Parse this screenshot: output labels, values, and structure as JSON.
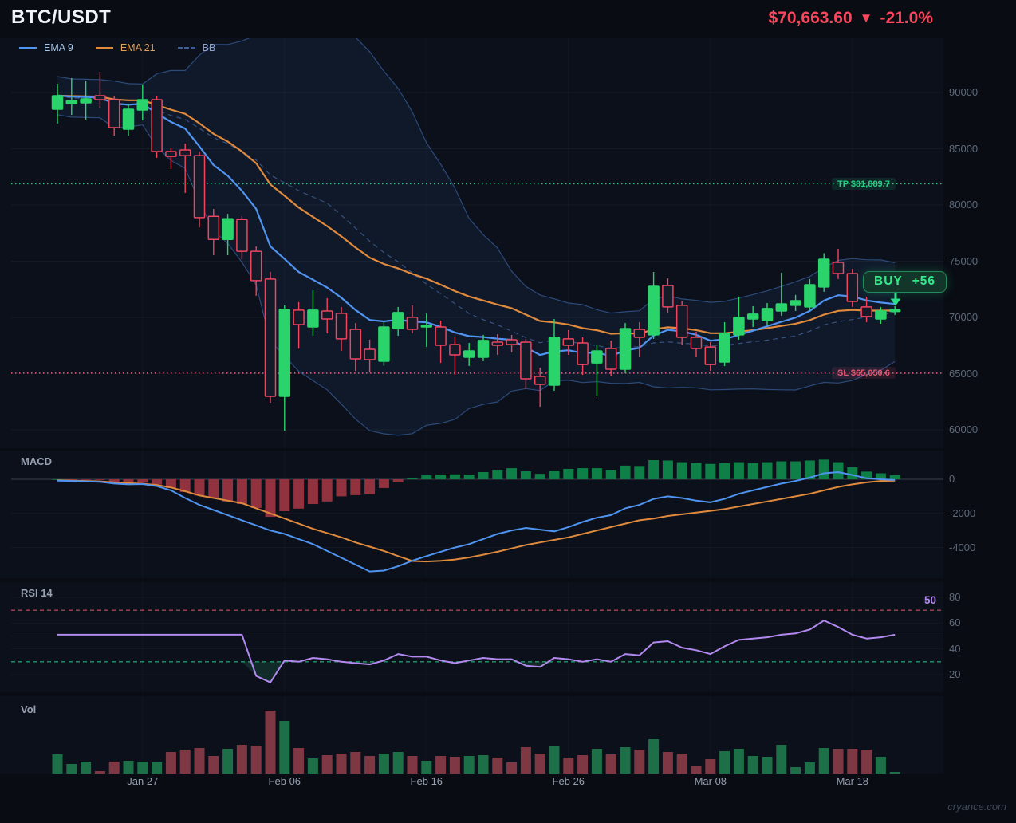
{
  "header": {
    "symbol": "BTC/USDT",
    "price": "$70,663.60",
    "direction": "▼",
    "change": "-21.0%"
  },
  "legend": [
    {
      "label": "EMA 9",
      "color": "#4f94f0",
      "text_color": "#aac6e8",
      "style": "line"
    },
    {
      "label": "EMA 21",
      "color": "#e08a3e",
      "text_color": "#e0a35c",
      "style": "line"
    },
    {
      "label": "BB",
      "color": "#3d5e94",
      "text_color": "#8fa5cf",
      "style": "dashed"
    }
  ],
  "panel_titles": {
    "macd": "MACD",
    "rsi": "RSI 14",
    "vol": "Vol"
  },
  "watermark": "cryance.com",
  "colors": {
    "page_bg": "#090c13",
    "panel_bg": "#0c101a",
    "up": "#2bd46a",
    "down": "#f0445f",
    "down_body": "#141a28",
    "ema9": "#4f94f0",
    "ema21": "#e08a3e",
    "bb_line": "#2b4a7a",
    "bb_mid": "#44669c",
    "bb_fill": "rgba(58,110,190,0.10)",
    "hist_pos": "#0e7f46",
    "hist_neg": "#93323f",
    "macd_line": "#4f94f0",
    "signal_line": "#e08a3e",
    "rsi_line": "#b289ee",
    "rsi_ob": "#a5455a",
    "rsi_os": "#23996b",
    "rsi_fill": "rgba(35,153,107,0.20)",
    "vol_up": "#1d6f47",
    "vol_down": "#7e3844",
    "tp": "#27cf84",
    "sl": "#e05672",
    "buy": "#2ee08a",
    "price_text": "#f8465c",
    "grid": "rgba(255,255,255,0.045)",
    "vgrid": "rgba(255,255,255,0.03)",
    "zero_line": "#39404e"
  },
  "chart_data": {
    "type": "candlestick",
    "title": "BTC/USDT",
    "price_ticks": [
      90000,
      85000,
      80000,
      75000,
      70000,
      65000,
      60000
    ],
    "date_ticks": [
      {
        "label": "Jan 27",
        "index": 6
      },
      {
        "label": "Feb 06",
        "index": 16
      },
      {
        "label": "Feb 16",
        "index": 26
      },
      {
        "label": "Feb 26",
        "index": 36
      },
      {
        "label": "Mar 08",
        "index": 46
      },
      {
        "label": "Mar 18",
        "index": 56
      }
    ],
    "candles": [
      [
        88510,
        90780,
        87230,
        89720
      ],
      [
        89000,
        91280,
        88010,
        89290
      ],
      [
        89080,
        91060,
        87590,
        89430
      ],
      [
        89720,
        91840,
        88650,
        89360
      ],
      [
        89360,
        89720,
        86170,
        86880
      ],
      [
        86740,
        89000,
        86170,
        88510
      ],
      [
        88440,
        90700,
        87520,
        89360
      ],
      [
        89360,
        89720,
        84180,
        84750
      ],
      [
        84750,
        85100,
        83190,
        84320
      ],
      [
        84890,
        85460,
        81070,
        84390
      ],
      [
        84390,
        84750,
        78000,
        78870
      ],
      [
        78990,
        79640,
        75530,
        76930
      ],
      [
        76930,
        79210,
        75530,
        78780
      ],
      [
        78710,
        79000,
        75170,
        75880
      ],
      [
        75880,
        76310,
        71920,
        73270
      ],
      [
        73410,
        74050,
        62410,
        62980
      ],
      [
        62980,
        71070,
        59930,
        70720
      ],
      [
        70650,
        71350,
        67230,
        69360
      ],
      [
        69150,
        72410,
        68370,
        70650
      ],
      [
        70570,
        71710,
        68580,
        69860
      ],
      [
        70360,
        70930,
        67020,
        68090
      ],
      [
        68940,
        69500,
        65240,
        66310
      ],
      [
        67160,
        68020,
        65100,
        66240
      ],
      [
        66100,
        69600,
        65700,
        69150
      ],
      [
        69010,
        70930,
        68370,
        70430
      ],
      [
        70010,
        71070,
        68580,
        68940
      ],
      [
        69150,
        70360,
        67370,
        69290
      ],
      [
        69150,
        69720,
        65950,
        67520
      ],
      [
        67590,
        68230,
        64890,
        66670
      ],
      [
        66450,
        67730,
        65680,
        67020
      ],
      [
        66450,
        68450,
        66100,
        67950
      ],
      [
        67800,
        68510,
        66670,
        67520
      ],
      [
        68010,
        68440,
        66880,
        67590
      ],
      [
        67800,
        68090,
        63620,
        64540
      ],
      [
        64750,
        65530,
        62060,
        64040
      ],
      [
        63970,
        69860,
        63480,
        68230
      ],
      [
        68090,
        68870,
        66670,
        67520
      ],
      [
        67730,
        68230,
        64890,
        65810
      ],
      [
        65950,
        67590,
        62980,
        67020
      ],
      [
        67230,
        67940,
        64750,
        65390
      ],
      [
        65390,
        69500,
        65030,
        69010
      ],
      [
        68940,
        69570,
        66450,
        68230
      ],
      [
        68450,
        74040,
        68090,
        72770
      ],
      [
        72840,
        73480,
        70430,
        70930
      ],
      [
        71070,
        71490,
        67520,
        68230
      ],
      [
        68230,
        68730,
        66450,
        67230
      ],
      [
        67370,
        67800,
        65240,
        65810
      ],
      [
        66030,
        69570,
        65670,
        68590
      ],
      [
        68450,
        71850,
        68020,
        70010
      ],
      [
        69860,
        71000,
        69150,
        70290
      ],
      [
        69720,
        71280,
        69290,
        70790
      ],
      [
        70570,
        73970,
        70150,
        71210
      ],
      [
        71070,
        72000,
        70570,
        71490
      ],
      [
        70930,
        73410,
        70590,
        72910
      ],
      [
        72700,
        75710,
        72280,
        75180
      ],
      [
        74890,
        76100,
        73410,
        73900
      ],
      [
        73900,
        74320,
        70930,
        71420
      ],
      [
        70930,
        71850,
        69570,
        70080
      ],
      [
        69860,
        70930,
        69430,
        70570
      ],
      [
        70570,
        71000,
        70220,
        70664
      ]
    ],
    "volume": [
      [
        24,
        1
      ],
      [
        12,
        1
      ],
      [
        15,
        1
      ],
      [
        3,
        0
      ],
      [
        15,
        0
      ],
      [
        16,
        1
      ],
      [
        15,
        1
      ],
      [
        14,
        1
      ],
      [
        27,
        0
      ],
      [
        30,
        0
      ],
      [
        32,
        0
      ],
      [
        22,
        0
      ],
      [
        31,
        1
      ],
      [
        36,
        0
      ],
      [
        35,
        0
      ],
      [
        79,
        0
      ],
      [
        66,
        1
      ],
      [
        32,
        0
      ],
      [
        19,
        1
      ],
      [
        23,
        0
      ],
      [
        25,
        0
      ],
      [
        27,
        0
      ],
      [
        22,
        0
      ],
      [
        25,
        1
      ],
      [
        27,
        1
      ],
      [
        22,
        0
      ],
      [
        16,
        1
      ],
      [
        22,
        0
      ],
      [
        21,
        0
      ],
      [
        22,
        1
      ],
      [
        23,
        1
      ],
      [
        20,
        0
      ],
      [
        14,
        0
      ],
      [
        33,
        0
      ],
      [
        25,
        0
      ],
      [
        34,
        1
      ],
      [
        20,
        0
      ],
      [
        23,
        0
      ],
      [
        31,
        1
      ],
      [
        24,
        0
      ],
      [
        33,
        1
      ],
      [
        30,
        0
      ],
      [
        43,
        1
      ],
      [
        27,
        0
      ],
      [
        25,
        0
      ],
      [
        10,
        0
      ],
      [
        18,
        0
      ],
      [
        28,
        1
      ],
      [
        31,
        1
      ],
      [
        22,
        1
      ],
      [
        21,
        1
      ],
      [
        36,
        1
      ],
      [
        8,
        1
      ],
      [
        14,
        1
      ],
      [
        32,
        1
      ],
      [
        31,
        0
      ],
      [
        31,
        0
      ],
      [
        30,
        0
      ],
      [
        21,
        1
      ],
      [
        2,
        1
      ]
    ],
    "indicators": {
      "ema_periods": [
        9,
        21
      ],
      "bollinger": {
        "period": 20,
        "mult": 2
      },
      "macd": {
        "ticks": [
          "0",
          "-2000",
          "-4000"
        ],
        "tick_values": [
          0,
          -2000,
          -4000
        ],
        "line": [
          -80,
          -100,
          -120,
          -150,
          -250,
          -300,
          -280,
          -400,
          -650,
          -1100,
          -1500,
          -1800,
          -2100,
          -2400,
          -2700,
          -3000,
          -3200,
          -3500,
          -3800,
          -4200,
          -4600,
          -5000,
          -5400,
          -5350,
          -5100,
          -4770,
          -4500,
          -4250,
          -4000,
          -3800,
          -3500,
          -3200,
          -3000,
          -2850,
          -2950,
          -3050,
          -2800,
          -2500,
          -2250,
          -2100,
          -1700,
          -1500,
          -1150,
          -1000,
          -1100,
          -1250,
          -1350,
          -1150,
          -850,
          -650,
          -450,
          -250,
          -100,
          100,
          350,
          420,
          250,
          60,
          0,
          -40
        ],
        "signal": [
          -60,
          -80,
          -100,
          -120,
          -180,
          -230,
          -260,
          -330,
          -480,
          -700,
          -950,
          -1100,
          -1250,
          -1400,
          -1700,
          -2000,
          -2300,
          -2600,
          -2900,
          -3150,
          -3400,
          -3700,
          -3950,
          -4200,
          -4500,
          -4790,
          -4820,
          -4780,
          -4700,
          -4580,
          -4420,
          -4250,
          -4050,
          -3850,
          -3700,
          -3550,
          -3400,
          -3200,
          -3000,
          -2800,
          -2600,
          -2400,
          -2300,
          -2150,
          -2050,
          -1950,
          -1850,
          -1750,
          -1600,
          -1450,
          -1300,
          -1150,
          -1000,
          -850,
          -650,
          -450,
          -300,
          -180,
          -100,
          -80
        ],
        "histogram": [
          0,
          -10,
          -20,
          -40,
          -200,
          -250,
          -200,
          -310,
          -510,
          -750,
          -950,
          -1110,
          -1300,
          -1450,
          -1680,
          -2200,
          -1870,
          -1720,
          -1450,
          -1300,
          -1000,
          -930,
          -880,
          -510,
          -180,
          50,
          230,
          280,
          290,
          270,
          420,
          560,
          650,
          470,
          320,
          500,
          610,
          650,
          650,
          560,
          800,
          780,
          1120,
          1100,
          1000,
          950,
          900,
          950,
          1000,
          950,
          1000,
          1050,
          1050,
          1100,
          1150,
          1000,
          700,
          450,
          350,
          250
        ]
      },
      "rsi": {
        "period": 14,
        "current": "50",
        "ticks": [
          80,
          60,
          40,
          20
        ],
        "overbought": 70,
        "oversold": 30,
        "values": [
          51,
          51,
          51,
          51,
          51,
          51,
          51,
          51,
          51,
          51,
          51,
          51,
          51,
          51,
          19,
          14,
          31,
          30,
          33,
          32,
          30,
          29,
          28,
          31,
          36,
          34,
          34,
          31,
          29,
          31,
          33,
          32,
          32,
          27,
          26,
          33,
          32,
          30,
          32,
          30,
          36,
          35,
          45,
          46,
          41,
          39,
          36,
          42,
          47,
          48,
          49,
          51,
          52,
          55,
          62,
          57,
          51,
          48,
          49,
          51
        ]
      }
    },
    "annotations": {
      "tp": {
        "label": "TP $81,889.7",
        "price": 81889.7
      },
      "sl": {
        "label": "SL $65,050.6",
        "price": 65050.6
      },
      "buy": {
        "label": "BUY",
        "qty": "+56"
      }
    }
  }
}
